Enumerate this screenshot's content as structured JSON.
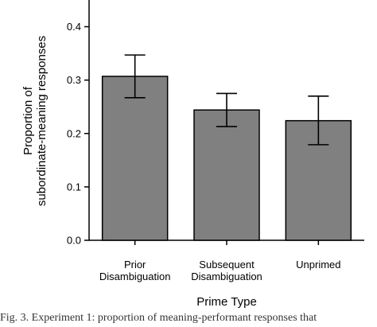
{
  "chart_data": {
    "type": "bar",
    "categories": [
      [
        "Prior",
        "Disambiguation"
      ],
      [
        "Subsequent",
        "Disambiguation"
      ],
      [
        "Unprimed"
      ]
    ],
    "values": [
      0.307,
      0.244,
      0.224
    ],
    "error_low": [
      0.267,
      0.213,
      0.179
    ],
    "error_high": [
      0.347,
      0.275,
      0.27
    ],
    "ylim": [
      0,
      0.45
    ],
    "yticks": [
      "0.0",
      "0.1",
      "0.2",
      "0.3",
      "0.4"
    ],
    "ytick_values": [
      0,
      0.1,
      0.2,
      0.3,
      0.4
    ],
    "xlabel": "Prime Type",
    "ylabel": [
      "Proportion of",
      "subordinate-meaning responses"
    ],
    "bar_color": "#808080",
    "grid": false
  },
  "caption": "Fig. 3.  Experiment 1: proportion of meaning-performant responses that"
}
